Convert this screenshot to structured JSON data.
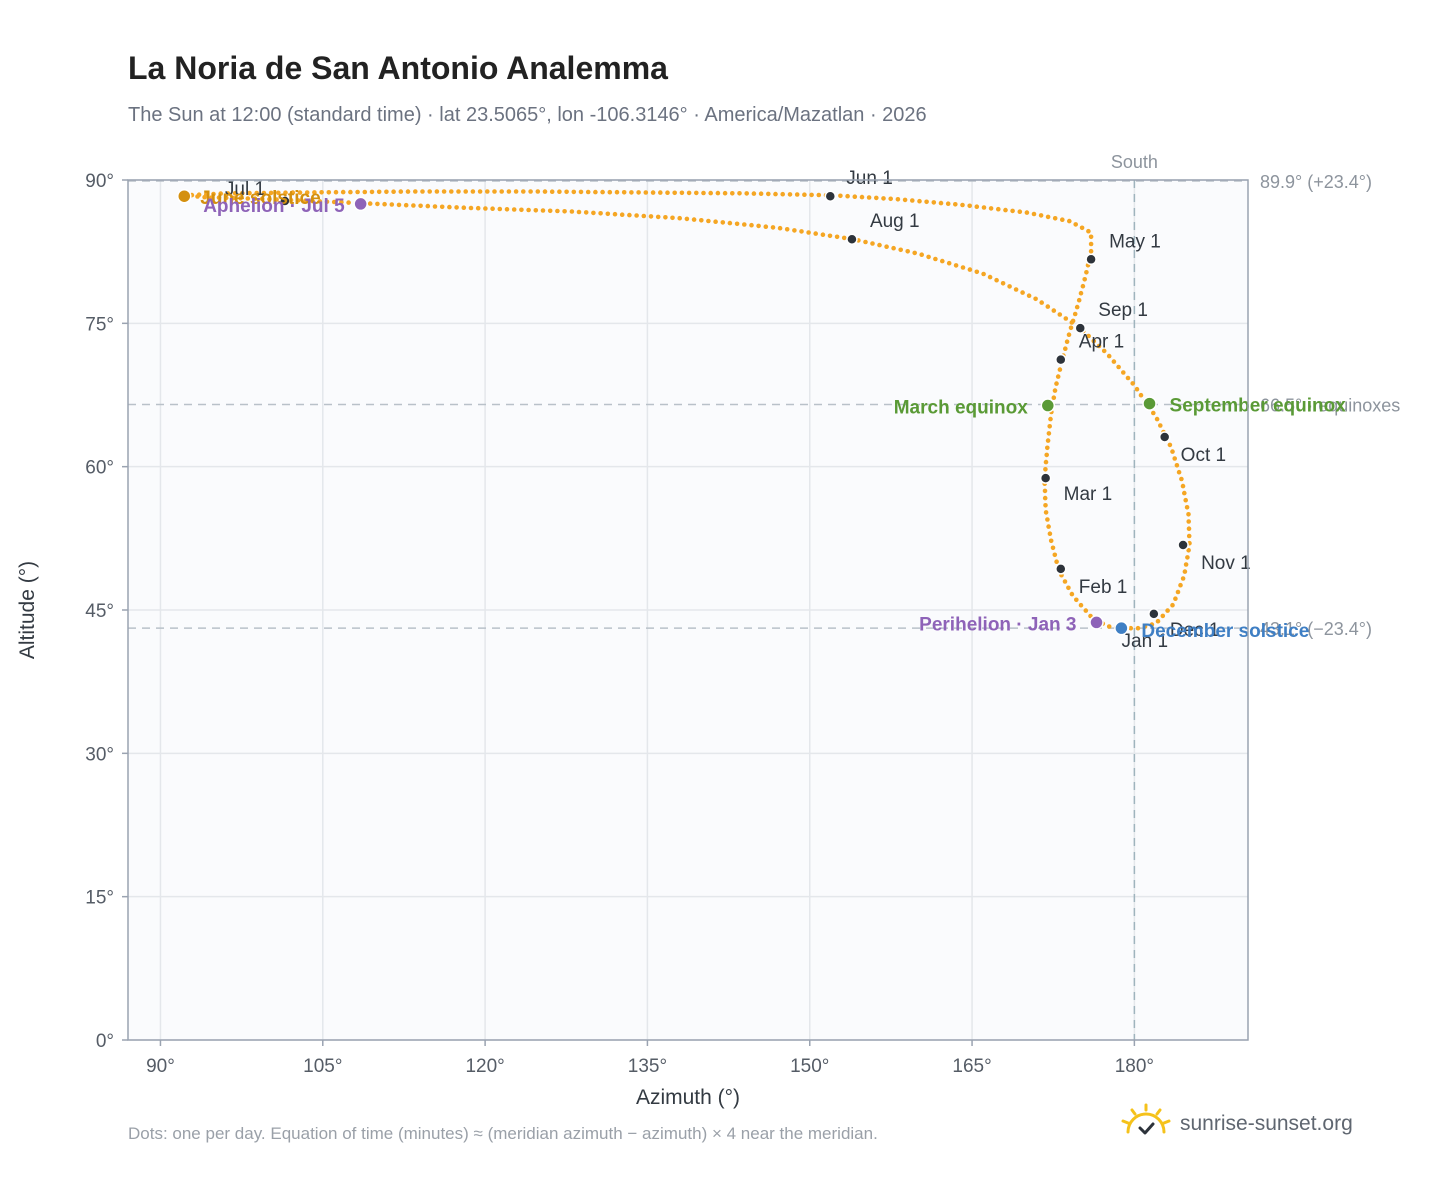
{
  "chart_data": {
    "type": "scatter",
    "title": "La Noria de San Antonio Analemma",
    "subtitle": "The Sun at 12:00 (standard time) · lat 23.5065°, lon -106.3146° · America/Mazatlan · 2026",
    "xlabel": "Azimuth (°)",
    "ylabel": "Altitude (°)",
    "xlim": [
      87,
      190.5
    ],
    "ylim": [
      0,
      90
    ],
    "xticks": [
      90,
      105,
      120,
      135,
      150,
      165,
      180
    ],
    "xtick_labels": [
      "90°",
      "105°",
      "120°",
      "135°",
      "150°",
      "165°",
      "180°"
    ],
    "yticks": [
      0,
      15,
      30,
      45,
      60,
      75,
      90
    ],
    "ytick_labels": [
      "0°",
      "15°",
      "30°",
      "45°",
      "60°",
      "75°",
      "90°"
    ],
    "grid": true,
    "meridian": {
      "azimuth": 180,
      "label": "South"
    },
    "reference_lines": [
      {
        "altitude": 89.9,
        "label": "89.9° (+23.4°)"
      },
      {
        "altitude": 66.5,
        "label": "66.5° · equinoxes"
      },
      {
        "altitude": 43.1,
        "label": "43.1° (−23.4°)"
      }
    ],
    "path": {
      "name": "Daily sun position at 12:00",
      "color": "#f5a623",
      "points": [
        [
          179.0,
          43.1
        ],
        [
          180.5,
          43.1
        ],
        [
          182.0,
          43.6
        ],
        [
          183.6,
          45.6
        ],
        [
          184.6,
          48.6
        ],
        [
          185.1,
          51.8
        ],
        [
          185.0,
          55.0
        ],
        [
          184.4,
          58.5
        ],
        [
          183.4,
          62.0
        ],
        [
          182.0,
          65.2
        ],
        [
          180.0,
          68.5
        ],
        [
          177.5,
          71.8
        ],
        [
          175.0,
          74.5
        ],
        [
          171.0,
          77.5
        ],
        [
          166.0,
          80.2
        ],
        [
          160.0,
          82.3
        ],
        [
          154.0,
          83.8
        ],
        [
          147.0,
          85.0
        ],
        [
          138.0,
          86.0
        ],
        [
          128.0,
          86.7
        ],
        [
          118.0,
          87.1
        ],
        [
          108.0,
          87.6
        ],
        [
          100.0,
          88.0
        ],
        [
          94.0,
          88.2
        ],
        [
          92.5,
          88.4
        ],
        [
          96.0,
          88.6
        ],
        [
          104.0,
          88.7
        ],
        [
          114.0,
          88.8
        ],
        [
          124.0,
          88.8
        ],
        [
          134.0,
          88.7
        ],
        [
          144.0,
          88.6
        ],
        [
          152.0,
          88.4
        ],
        [
          158.0,
          88.0
        ],
        [
          164.0,
          87.4
        ],
        [
          170.0,
          86.6
        ],
        [
          174.0,
          85.7
        ],
        [
          176.0,
          84.5
        ],
        [
          176.0,
          82.5
        ],
        [
          175.5,
          80.0
        ],
        [
          174.8,
          77.0
        ],
        [
          174.0,
          74.0
        ],
        [
          173.3,
          71.0
        ],
        [
          172.7,
          68.2
        ],
        [
          172.3,
          65.5
        ],
        [
          172.0,
          62.5
        ],
        [
          171.7,
          58.8
        ],
        [
          171.8,
          55.5
        ],
        [
          172.3,
          52.3
        ],
        [
          173.0,
          49.2
        ],
        [
          174.3,
          46.5
        ],
        [
          176.0,
          44.3
        ],
        [
          177.5,
          43.3
        ],
        [
          179.0,
          43.1
        ]
      ]
    },
    "dot_path": {
      "color": "#f5a623",
      "count": 365
    },
    "month_markers": [
      {
        "label": "Jan 1",
        "azimuth": 179.0,
        "altitude": 43.2
      },
      {
        "label": "Feb 1",
        "azimuth": 173.2,
        "altitude": 49.3
      },
      {
        "label": "Mar 1",
        "azimuth": 171.8,
        "altitude": 58.8
      },
      {
        "label": "Apr 1",
        "azimuth": 173.2,
        "altitude": 71.2
      },
      {
        "label": "May 1",
        "azimuth": 176.0,
        "altitude": 81.7
      },
      {
        "label": "Jun 1",
        "azimuth": 151.9,
        "altitude": 88.3
      },
      {
        "label": "Jul 1",
        "azimuth": 101.5,
        "altitude": 87.8
      },
      {
        "label": "Aug 1",
        "azimuth": 153.9,
        "altitude": 83.8
      },
      {
        "label": "Sep 1",
        "azimuth": 175.0,
        "altitude": 74.5
      },
      {
        "label": "Oct 1",
        "azimuth": 182.8,
        "altitude": 63.1
      },
      {
        "label": "Nov 1",
        "azimuth": 184.5,
        "altitude": 51.8
      },
      {
        "label": "Dec 1",
        "azimuth": 181.8,
        "altitude": 44.6
      }
    ],
    "events": [
      {
        "label": "June solstice",
        "azimuth": 92.2,
        "altitude": 88.3,
        "color": "#d4900f"
      },
      {
        "label": "Aphelion · Jul 5",
        "azimuth": 108.5,
        "altitude": 87.5,
        "color": "#8e63b8"
      },
      {
        "label": "March equinox",
        "azimuth": 172.0,
        "altitude": 66.4,
        "color": "#5a9a36"
      },
      {
        "label": "September equinox",
        "azimuth": 181.4,
        "altitude": 66.6,
        "color": "#5a9a36"
      },
      {
        "label": "Perihelion · Jan 3",
        "azimuth": 176.5,
        "altitude": 43.7,
        "color": "#8e63b8"
      },
      {
        "label": "December solstice",
        "azimuth": 178.8,
        "altitude": 43.1,
        "color": "#3f7fc4"
      }
    ]
  },
  "footnote": "Dots: one per day. Equation of time (minutes) ≈ (meridian azimuth − azimuth) × 4 near the meridian.",
  "brand": {
    "name": "sunrise-sunset.org",
    "icon": "sun-icon"
  },
  "colors": {
    "plot_background": "#fafbfd",
    "grid": "#e4e7eb",
    "axis": "#9aa3b1",
    "marker": "#2d333b",
    "text": "#222222"
  }
}
